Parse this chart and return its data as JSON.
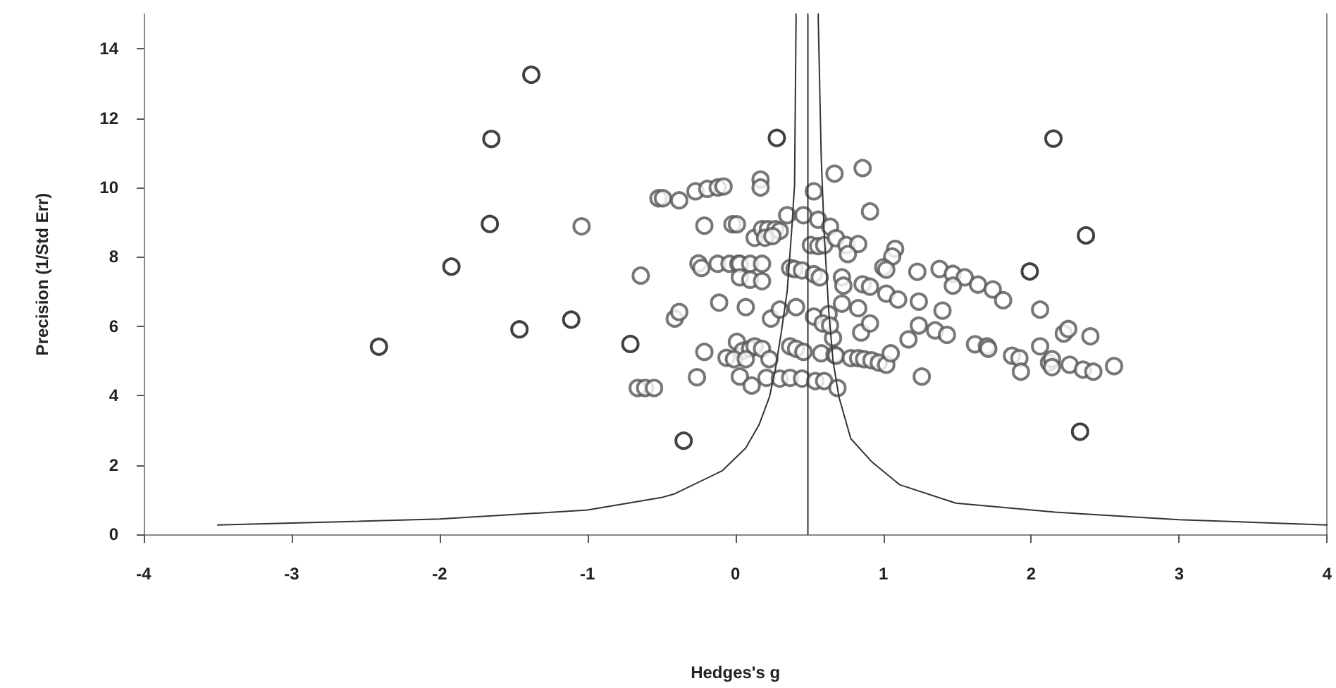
{
  "chart_data": {
    "type": "scatter",
    "xlabel": "Hedges's g",
    "ylabel": "Precision (1/Std Err)",
    "xlim": [
      -4,
      4
    ],
    "ylim": [
      0,
      15
    ],
    "xticks": [
      -4,
      -3,
      -2,
      -1,
      0,
      1,
      2,
      3,
      4
    ],
    "yticks": [
      0,
      2,
      4,
      6,
      8,
      10,
      12,
      14
    ],
    "grid": false,
    "marker": "circle",
    "series": [
      {
        "color": "#555555",
        "x": [
          -1.04,
          -0.64,
          -0.52,
          -0.66,
          -0.61,
          -0.55,
          -0.49,
          -0.38,
          -0.27,
          -0.19,
          -0.12,
          -0.08,
          0.17,
          0.17,
          0.53,
          0.67,
          -0.21,
          -0.02,
          0.01,
          0.13,
          0.18,
          0.22,
          0.27,
          0.3,
          0.2,
          0.25,
          0.35,
          0.46,
          0.56,
          0.64,
          0.51,
          0.56,
          0.6,
          0.68,
          -0.25,
          -0.23,
          -0.12,
          -0.04,
          0.02,
          0.03,
          0.1,
          0.18,
          0.03,
          0.1,
          0.18,
          0.37,
          0.4,
          0.45,
          0.53,
          0.57,
          0.72,
          -0.11,
          0.07,
          -0.41,
          -0.38,
          0.24,
          0.3,
          0.41,
          0.53,
          0.63,
          0.59,
          0.66,
          -0.21,
          0.01,
          0.05,
          0.1,
          0.13,
          0.18,
          -0.06,
          -0.01,
          0.07,
          0.23,
          0.37,
          0.41,
          0.46,
          0.58,
          0.67,
          -0.26,
          0.03,
          0.11,
          0.21,
          0.3,
          0.37,
          0.45,
          0.54,
          0.6,
          0.69,
          0.86,
          0.91,
          0.75,
          0.83,
          0.76,
          1.08,
          1.06,
          1.0,
          1.02,
          1.23,
          1.38,
          1.47,
          1.55,
          1.47,
          1.64,
          1.74,
          1.81,
          2.06,
          0.73,
          0.86,
          0.91,
          1.02,
          1.1,
          1.24,
          1.4,
          0.72,
          0.83,
          0.64,
          0.85,
          0.91,
          1.17,
          1.24,
          1.35,
          1.43,
          1.62,
          1.7,
          1.71,
          1.87,
          1.92,
          1.93,
          2.06,
          2.12,
          0.68,
          0.78,
          0.83,
          0.87,
          0.92,
          0.97,
          1.02,
          1.05,
          1.26,
          2.22,
          2.25,
          2.4,
          2.14,
          2.14,
          2.26,
          2.35,
          2.42,
          2.56
        ],
        "values": [
          8.88,
          7.46,
          9.69,
          4.22,
          4.22,
          4.22,
          9.69,
          9.63,
          9.89,
          9.96,
          10.0,
          10.03,
          10.23,
          10.0,
          9.89,
          10.4,
          8.9,
          8.94,
          8.94,
          8.55,
          8.8,
          8.8,
          8.8,
          8.75,
          8.55,
          8.6,
          9.2,
          9.2,
          9.07,
          8.87,
          8.34,
          8.31,
          8.34,
          8.54,
          7.81,
          7.68,
          7.8,
          7.8,
          7.8,
          7.8,
          7.8,
          7.8,
          7.41,
          7.34,
          7.3,
          7.68,
          7.65,
          7.61,
          7.5,
          7.41,
          7.41,
          6.68,
          6.55,
          6.22,
          6.41,
          6.22,
          6.48,
          6.55,
          6.28,
          6.35,
          6.08,
          5.66,
          5.26,
          5.55,
          5.29,
          5.35,
          5.42,
          5.35,
          5.09,
          5.05,
          5.05,
          5.05,
          5.42,
          5.35,
          5.26,
          5.22,
          5.18,
          4.53,
          4.55,
          4.29,
          4.51,
          4.49,
          4.51,
          4.49,
          4.42,
          4.42,
          4.22,
          10.56,
          9.31,
          8.34,
          8.37,
          8.08,
          8.23,
          8.01,
          7.7,
          7.63,
          7.57,
          7.65,
          7.51,
          7.41,
          7.17,
          7.2,
          7.06,
          6.75,
          6.48,
          7.17,
          7.21,
          7.14,
          6.94,
          6.77,
          6.71,
          6.45,
          6.65,
          6.52,
          6.02,
          5.82,
          6.08,
          5.62,
          6.02,
          5.88,
          5.75,
          5.48,
          5.42,
          5.35,
          5.15,
          5.08,
          4.69,
          5.42,
          4.95,
          5.15,
          5.08,
          5.08,
          5.05,
          5.02,
          4.95,
          4.89,
          5.22,
          4.55,
          5.79,
          5.92,
          5.71,
          5.05,
          4.82,
          4.89,
          4.75,
          4.69,
          4.85
        ]
      },
      {
        "color": "#111111",
        "x": [
          -1.38,
          -1.65,
          -1.66,
          -1.92,
          -1.46,
          -1.11,
          -0.71,
          -2.41,
          -0.35,
          0.28,
          2.15,
          2.37,
          1.99,
          2.33
        ],
        "values": [
          13.25,
          11.4,
          8.95,
          7.72,
          5.91,
          6.19,
          5.49,
          5.41,
          2.7,
          11.43,
          11.41,
          8.62,
          7.58,
          2.96
        ]
      },
      {
        "type": "line",
        "marker": "none",
        "color": "#333333",
        "x": [
          0.49,
          0.49
        ],
        "values": [
          0,
          15
        ]
      },
      {
        "type": "line",
        "marker": "none",
        "color": "#333333",
        "x": [
          -3.5,
          -2.0,
          -1.0,
          -0.5,
          -0.41,
          -0.09,
          0.07,
          0.16,
          0.23,
          0.27,
          0.31,
          0.35,
          0.38,
          0.4,
          0.41,
          0.41
        ],
        "values": [
          0.27,
          0.44,
          0.7,
          1.06,
          1.17,
          1.83,
          2.49,
          3.16,
          3.96,
          4.75,
          5.82,
          7.01,
          8.74,
          10.07,
          14.85,
          15
        ]
      },
      {
        "type": "line",
        "marker": "none",
        "color": "#333333",
        "x": [
          0.56,
          0.56,
          0.58,
          0.6,
          0.63,
          0.66,
          0.7,
          0.78,
          0.92,
          1.11,
          1.49,
          2.16,
          3.0,
          4.0
        ],
        "values": [
          15,
          14.9,
          10.9,
          8.7,
          6.5,
          5.0,
          3.96,
          2.76,
          2.1,
          1.43,
          0.9,
          0.64,
          0.42,
          0.27
        ]
      }
    ]
  }
}
